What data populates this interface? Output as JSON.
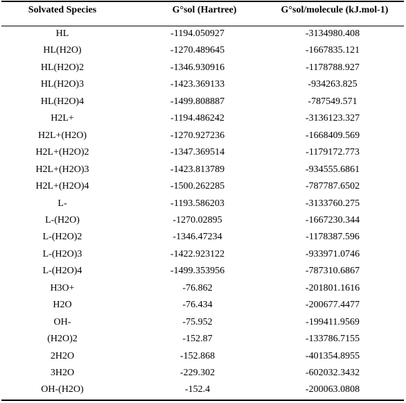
{
  "header": {
    "species": "Solvated Species",
    "g_sol": "G°sol (Hartree)",
    "g_sol_molecule": "G°sol/molecule (kJ.mol-1)"
  },
  "rows": [
    {
      "species": "HL",
      "hartree": "-1194.050927",
      "kj": "-3134980.408"
    },
    {
      "species": "HL(H2O)",
      "hartree": "-1270.489645",
      "kj": "-1667835.121"
    },
    {
      "species": "HL(H2O)2",
      "hartree": "-1346.930916",
      "kj": "-1178788.927"
    },
    {
      "species": "HL(H2O)3",
      "hartree": "-1423.369133",
      "kj": "-934263.825"
    },
    {
      "species": "HL(H2O)4",
      "hartree": "-1499.808887",
      "kj": "-787549.571"
    },
    {
      "species": "H2L+",
      "hartree": "-1194.486242",
      "kj": "-3136123.327"
    },
    {
      "species": "H2L+(H2O)",
      "hartree": "-1270.927236",
      "kj": "-1668409.569"
    },
    {
      "species": "H2L+(H2O)2",
      "hartree": "-1347.369514",
      "kj": "-1179172.773"
    },
    {
      "species": "H2L+(H2O)3",
      "hartree": "-1423.813789",
      "kj": "-934555.6861"
    },
    {
      "species": "H2L+(H2O)4",
      "hartree": "-1500.262285",
      "kj": "-787787.6502"
    },
    {
      "species": "L-",
      "hartree": "-1193.586203",
      "kj": "-3133760.275"
    },
    {
      "species": "L-(H2O)",
      "hartree": "-1270.02895",
      "kj": "-1667230.344"
    },
    {
      "species": "L-(H2O)2",
      "hartree": "-1346.47234",
      "kj": "-1178387.596"
    },
    {
      "species": "L-(H2O)3",
      "hartree": "-1422.923122",
      "kj": "-933971.0746"
    },
    {
      "species": "L-(H2O)4",
      "hartree": "-1499.353956",
      "kj": "-787310.6867"
    },
    {
      "species": "H3O+",
      "hartree": "-76.862",
      "kj": "-201801.1616"
    },
    {
      "species": "H2O",
      "hartree": "-76.434",
      "kj": "-200677.4477"
    },
    {
      "species": "OH-",
      "hartree": "-75.952",
      "kj": "-199411.9569"
    },
    {
      "species": "(H2O)2",
      "hartree": "-152.87",
      "kj": "-133786.7155"
    },
    {
      "species": "2H2O",
      "hartree": "-152.868",
      "kj": "-401354.8955"
    },
    {
      "species": "3H2O",
      "hartree": "-229.302",
      "kj": "-602032.3432"
    },
    {
      "species": "OH-(H2O)",
      "hartree": "-152.4",
      "kj": "-200063.0808"
    }
  ]
}
